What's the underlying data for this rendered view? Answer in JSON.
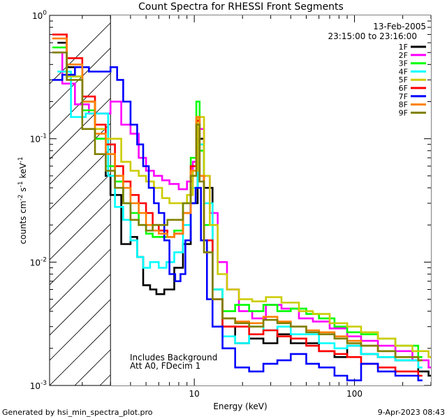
{
  "chart_data": {
    "type": "line",
    "title": "Count Spectra for RHESSI Front Segments",
    "xlabel": "Energy (keV)",
    "ylabel_base": "counts cm",
    "ylabel_sup1": "-2",
    "ylabel_mid1": " s",
    "ylabel_sup2": "-1",
    "ylabel_mid2": " keV",
    "ylabel_sup3": "-1",
    "x_scale": "log",
    "y_scale": "log",
    "xlim": [
      1.25,
      300
    ],
    "ylim": [
      0.001,
      1
    ],
    "x_ticks": [
      {
        "value": 10,
        "label": "10"
      },
      {
        "value": 100,
        "label": "100"
      }
    ],
    "y_ticks": [
      {
        "value": 1,
        "base": "10",
        "exp": "0"
      },
      {
        "value": 0.1,
        "base": "10",
        "exp": "-1"
      },
      {
        "value": 0.01,
        "base": "10",
        "exp": "-2"
      },
      {
        "value": 0.001,
        "base": "10",
        "exp": "-3"
      }
    ],
    "date": "13-Feb-2005",
    "time_range": "23:15:00 to 23:16:00",
    "annotations": [
      "Includes Background",
      "Att A0, FDecim 1"
    ],
    "hatched_region_below_keV": 3,
    "series": [
      {
        "name": "1F",
        "color": "#000000",
        "x": [
          1.4,
          1.6,
          2.0,
          2.4,
          2.8,
          3.0,
          3.5,
          4.0,
          4.4,
          4.8,
          5.3,
          5.8,
          6.5,
          7.5,
          8.5,
          9.5,
          10.5,
          11.5,
          13,
          15,
          18,
          22,
          27,
          33,
          40,
          50,
          60,
          75,
          90,
          110,
          140,
          180,
          250,
          290
        ],
        "y": [
          0.6,
          0.38,
          0.2,
          0.1,
          0.05,
          0.035,
          0.014,
          0.016,
          0.011,
          0.0065,
          0.006,
          0.0055,
          0.006,
          0.009,
          0.014,
          0.03,
          0.1,
          0.04,
          0.006,
          0.003,
          0.0022,
          0.0024,
          0.0022,
          0.0026,
          0.0022,
          0.0022,
          0.0019,
          0.0017,
          0.0021,
          0.0018,
          0.0017,
          0.0016,
          0.0013,
          0.0012
        ]
      },
      {
        "name": "2F",
        "color": "#ff00ff",
        "x": [
          1.3,
          1.5,
          1.8,
          2.2,
          2.6,
          3.0,
          3.5,
          4.0,
          4.5,
          5.0,
          5.6,
          6.3,
          7.0,
          8.0,
          9.0,
          9.8,
          10.5,
          11.5,
          12.5,
          14,
          16,
          19,
          23,
          28,
          35,
          45,
          55,
          70,
          90,
          110,
          140,
          180,
          230,
          290
        ],
        "y": [
          0.5,
          0.28,
          0.19,
          0.16,
          0.16,
          0.2,
          0.13,
          0.11,
          0.07,
          0.055,
          0.05,
          0.046,
          0.043,
          0.039,
          0.045,
          0.065,
          0.12,
          0.05,
          0.025,
          0.01,
          0.006,
          0.004,
          0.0035,
          0.0045,
          0.0042,
          0.0035,
          0.0033,
          0.0029,
          0.0025,
          0.0023,
          0.0021,
          0.0019,
          0.0016,
          0.0014
        ]
      },
      {
        "name": "3F",
        "color": "#00ff00",
        "x": [
          1.3,
          1.6,
          2.0,
          2.4,
          2.8,
          3.2,
          3.6,
          4.0,
          4.5,
          5.0,
          5.5,
          6.0,
          6.8,
          7.5,
          8.5,
          9.5,
          10.3,
          10.8,
          11.5,
          13,
          15,
          18,
          22,
          27,
          33,
          40,
          50,
          60,
          75,
          90,
          110,
          140,
          180,
          250
        ],
        "y": [
          0.55,
          0.32,
          0.17,
          0.1,
          0.06,
          0.045,
          0.03,
          0.025,
          0.02,
          0.017,
          0.016,
          0.016,
          0.016,
          0.018,
          0.03,
          0.07,
          0.2,
          0.08,
          0.02,
          0.006,
          0.004,
          0.0045,
          0.004,
          0.0045,
          0.004,
          0.0042,
          0.0038,
          0.0035,
          0.003,
          0.0027,
          0.0026,
          0.0024,
          0.0021,
          0.0017
        ]
      },
      {
        "name": "4F",
        "color": "#00ffff",
        "x": [
          1.4,
          1.7,
          2.1,
          2.5,
          2.9,
          3.2,
          3.6,
          4.0,
          4.4,
          4.8,
          5.3,
          6.0,
          6.7,
          7.5,
          8.5,
          9.5,
          10.5,
          11.5,
          13,
          15,
          18,
          22,
          27,
          33,
          40,
          50,
          60,
          75,
          90,
          110,
          140,
          180,
          250
        ],
        "y": [
          0.35,
          0.15,
          0.16,
          0.16,
          0.05,
          0.028,
          0.022,
          0.015,
          0.011,
          0.009,
          0.01,
          0.009,
          0.01,
          0.012,
          0.02,
          0.04,
          0.09,
          0.03,
          0.006,
          0.0025,
          0.0022,
          0.003,
          0.0028,
          0.003,
          0.0026,
          0.0026,
          0.0022,
          0.002,
          0.0021,
          0.0018,
          0.0017,
          0.0016,
          0.0014
        ]
      },
      {
        "name": "5F",
        "color": "#cccc00",
        "x": [
          1.3,
          1.6,
          2.0,
          2.4,
          2.8,
          3.0,
          3.5,
          4.0,
          4.5,
          5.0,
          5.6,
          6.3,
          7.0,
          8.0,
          9.0,
          9.8,
          10.5,
          11.5,
          12.5,
          14,
          16,
          19,
          23,
          28,
          35,
          45,
          55,
          70,
          90,
          110,
          140,
          180,
          230,
          290
        ],
        "y": [
          0.5,
          0.32,
          0.2,
          0.12,
          0.1,
          0.1,
          0.065,
          0.055,
          0.05,
          0.045,
          0.04,
          0.033,
          0.03,
          0.03,
          0.035,
          0.055,
          0.15,
          0.05,
          0.02,
          0.008,
          0.006,
          0.005,
          0.0048,
          0.0052,
          0.0047,
          0.004,
          0.0038,
          0.0032,
          0.003,
          0.0027,
          0.0024,
          0.0021,
          0.0019,
          0.0017
        ]
      },
      {
        "name": "6F",
        "color": "#ff0000",
        "x": [
          1.3,
          1.6,
          2.0,
          2.4,
          2.8,
          3.2,
          3.6,
          4.0,
          4.5,
          5.0,
          5.5,
          6.0,
          6.8,
          7.5,
          8.5,
          9.5,
          10.3,
          10.8,
          11.5,
          13,
          15,
          18,
          22,
          27,
          33,
          40,
          50,
          60,
          75,
          90,
          110,
          140,
          180,
          250
        ],
        "y": [
          0.7,
          0.45,
          0.22,
          0.13,
          0.09,
          0.06,
          0.045,
          0.035,
          0.03,
          0.025,
          0.02,
          0.018,
          0.016,
          0.017,
          0.025,
          0.06,
          0.14,
          0.05,
          0.015,
          0.005,
          0.003,
          0.003,
          0.0026,
          0.0028,
          0.0025,
          0.0024,
          0.0021,
          0.0019,
          0.0018,
          0.0017,
          0.0015,
          0.0014,
          0.0013,
          0.0012
        ]
      },
      {
        "name": "7F",
        "color": "#0000ff",
        "x": [
          1.3,
          1.5,
          1.8,
          2.2,
          2.6,
          3.0,
          3.3,
          3.6,
          4.0,
          4.4,
          4.8,
          5.2,
          5.6,
          6.0,
          6.5,
          7.0,
          7.6,
          8.2,
          8.8,
          9.5,
          10.2,
          11,
          12,
          13,
          15,
          18,
          22,
          27,
          33,
          40,
          50,
          60,
          75,
          90,
          110,
          140,
          180,
          250
        ],
        "y": [
          0.3,
          0.33,
          0.38,
          0.35,
          0.35,
          0.38,
          0.3,
          0.2,
          0.13,
          0.09,
          0.06,
          0.04,
          0.03,
          0.025,
          0.015,
          0.008,
          0.007,
          0.008,
          0.015,
          0.03,
          0.04,
          0.015,
          0.005,
          0.003,
          0.002,
          0.0014,
          0.0013,
          0.0015,
          0.0016,
          0.0018,
          0.0015,
          0.0014,
          0.0012,
          0.0011,
          0.0015,
          0.0013,
          0.0012,
          0.0011
        ]
      },
      {
        "name": "8F",
        "color": "#ff8000",
        "x": [
          1.3,
          1.6,
          2.0,
          2.4,
          2.8,
          3.2,
          3.6,
          4.0,
          4.5,
          5.0,
          5.5,
          6.0,
          6.8,
          7.5,
          8.5,
          9.5,
          10.3,
          10.8,
          11.5,
          13,
          15,
          18,
          22,
          27,
          33,
          40,
          50,
          60,
          75,
          90,
          110,
          140,
          180,
          250
        ],
        "y": [
          0.65,
          0.4,
          0.2,
          0.11,
          0.075,
          0.05,
          0.04,
          0.03,
          0.025,
          0.02,
          0.018,
          0.017,
          0.016,
          0.017,
          0.025,
          0.055,
          0.15,
          0.05,
          0.012,
          0.005,
          0.0035,
          0.0033,
          0.0032,
          0.0036,
          0.0033,
          0.003,
          0.0028,
          0.0027,
          0.0025,
          0.0023,
          0.0021,
          0.0019,
          0.0017,
          0.0016
        ]
      },
      {
        "name": "9F",
        "color": "#808000",
        "x": [
          1.3,
          1.6,
          2.0,
          2.4,
          2.8,
          3.2,
          3.6,
          4.0,
          4.5,
          5.0,
          5.5,
          6.0,
          6.8,
          7.5,
          8.5,
          9.5,
          10.3,
          10.8,
          11.5,
          13,
          15,
          18,
          22,
          27,
          33,
          40,
          50,
          60,
          75,
          90,
          110,
          140,
          180,
          250
        ],
        "y": [
          0.5,
          0.3,
          0.12,
          0.075,
          0.055,
          0.04,
          0.03,
          0.022,
          0.02,
          0.018,
          0.02,
          0.02,
          0.022,
          0.022,
          0.03,
          0.05,
          0.13,
          0.045,
          0.012,
          0.005,
          0.0035,
          0.0032,
          0.003,
          0.0034,
          0.0032,
          0.003,
          0.0027,
          0.0026,
          0.0024,
          0.0022,
          0.0021,
          0.0019,
          0.0017,
          0.0016
        ]
      }
    ]
  },
  "footer": {
    "generator": "Generated by hsi_min_spectra_plot.pro",
    "timestamp": "9-Apr-2023 08:43"
  }
}
